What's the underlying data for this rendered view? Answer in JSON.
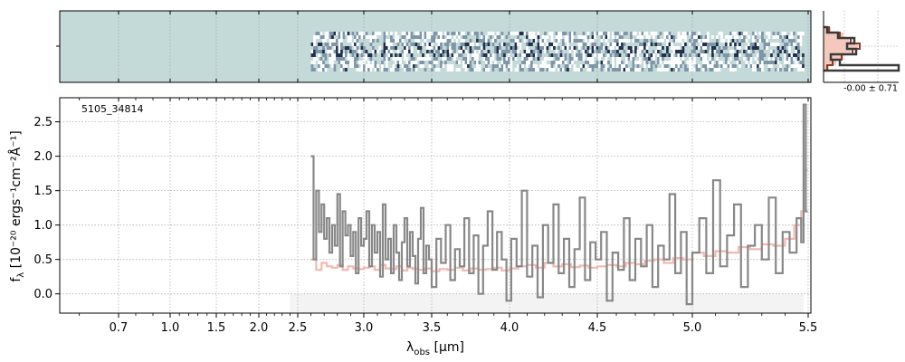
{
  "chart_data": [
    {
      "panel": "2d-spectrum",
      "type": "heatmap",
      "x_domain_um": [
        0.55,
        5.52
      ],
      "data_start_um": 2.6,
      "data_end_um": 5.48,
      "background_color": "#c4dad9",
      "colormap": [
        "#ffffff",
        "#c4dad9",
        "#7e95a8",
        "#1f2e4a"
      ]
    },
    {
      "panel": "pixel-histogram",
      "type": "histogram",
      "stat_text": "-0.00 ± 0.71",
      "colors": {
        "data": "#3a3a3a",
        "fill": "#f5c8bd",
        "model": "#8a3a28"
      }
    },
    {
      "panel": "1d-spectrum",
      "type": "line",
      "object_id": "5105_34814",
      "xlabel_main": "λ",
      "xlabel_sub": "obs",
      "xlabel_unit": " [μm]",
      "ylabel_main": "f",
      "ylabel_sub": "λ",
      "ylabel_unit": " [10⁻²⁰ ergs⁻¹cm⁻²Å⁻¹]",
      "x_scale": "sqrt-like (nonlinear wavelength axis)",
      "x_ticks": [
        "0.7",
        "1.0",
        "1.5",
        "2.0",
        "2.5",
        "3.0",
        "3.5",
        "4.0",
        "4.5",
        "5.0",
        "5.5"
      ],
      "x_tick_values": [
        0.7,
        1.0,
        1.5,
        2.0,
        2.5,
        3.0,
        3.5,
        4.0,
        4.5,
        5.0,
        5.5
      ],
      "y_ticks": [
        "0.0",
        "0.5",
        "1.0",
        "1.5",
        "2.0",
        "2.5"
      ],
      "y_tick_values": [
        0.0,
        0.5,
        1.0,
        1.5,
        2.0,
        2.5
      ],
      "xlim": [
        0.55,
        5.52
      ],
      "ylim": [
        -0.28,
        2.85
      ],
      "grid": true,
      "series": [
        {
          "role": "observed flux (step)",
          "color": "#888888",
          "x": [
            2.6,
            2.62,
            2.64,
            2.66,
            2.68,
            2.7,
            2.72,
            2.74,
            2.76,
            2.78,
            2.8,
            2.82,
            2.84,
            2.86,
            2.88,
            2.9,
            2.92,
            2.94,
            2.96,
            2.98,
            3.0,
            3.02,
            3.04,
            3.06,
            3.08,
            3.1,
            3.12,
            3.14,
            3.16,
            3.18,
            3.2,
            3.22,
            3.24,
            3.26,
            3.28,
            3.3,
            3.32,
            3.34,
            3.36,
            3.38,
            3.4,
            3.42,
            3.44,
            3.46,
            3.48,
            3.5,
            3.53,
            3.56,
            3.59,
            3.62,
            3.65,
            3.68,
            3.71,
            3.74,
            3.77,
            3.8,
            3.83,
            3.86,
            3.89,
            3.92,
            3.95,
            3.98,
            4.01,
            4.04,
            4.07,
            4.1,
            4.13,
            4.16,
            4.19,
            4.22,
            4.25,
            4.28,
            4.31,
            4.34,
            4.37,
            4.4,
            4.43,
            4.46,
            4.49,
            4.52,
            4.55,
            4.58,
            4.61,
            4.64,
            4.67,
            4.7,
            4.73,
            4.76,
            4.79,
            4.82,
            4.85,
            4.88,
            4.91,
            4.94,
            4.97,
            5.0,
            5.03,
            5.06,
            5.09,
            5.12,
            5.15,
            5.18,
            5.21,
            5.24,
            5.27,
            5.3,
            5.33,
            5.36,
            5.39,
            5.42,
            5.45,
            5.47,
            5.48,
            5.49
          ],
          "y": [
            2.0,
            0.5,
            1.5,
            0.9,
            1.3,
            0.8,
            1.1,
            0.6,
            1.0,
            0.7,
            1.45,
            0.4,
            1.2,
            0.85,
            1.0,
            0.55,
            0.9,
            0.3,
            1.1,
            0.7,
            0.8,
            1.2,
            0.4,
            1.0,
            0.6,
            0.9,
            0.25,
            1.3,
            0.5,
            0.8,
            0.3,
            1.0,
            0.6,
            0.2,
            0.75,
            1.1,
            0.4,
            0.9,
            0.55,
            0.15,
            0.8,
            1.25,
            0.3,
            0.7,
            0.5,
            0.1,
            0.8,
            0.45,
            1.0,
            0.2,
            0.65,
            0.4,
            1.1,
            0.3,
            0.85,
            0.0,
            0.7,
            1.2,
            0.35,
            0.9,
            0.5,
            -0.1,
            0.8,
            0.4,
            1.5,
            0.25,
            0.7,
            -0.05,
            1.0,
            0.45,
            1.3,
            0.3,
            0.8,
            0.1,
            0.65,
            1.4,
            0.2,
            0.75,
            0.5,
            0.9,
            -0.1,
            0.6,
            0.35,
            1.1,
            0.2,
            0.8,
            0.4,
            1.0,
            0.1,
            0.7,
            0.5,
            1.45,
            0.3,
            0.9,
            -0.15,
            0.6,
            1.1,
            0.3,
            1.65,
            0.4,
            0.85,
            1.3,
            0.1,
            0.7,
            1.0,
            0.5,
            1.4,
            0.3,
            0.9,
            0.6,
            1.1,
            0.75,
            2.75,
            1.2
          ]
        },
        {
          "role": "model / uncertainty (step)",
          "color": "#f2b8b3",
          "x": [
            2.6,
            2.64,
            2.68,
            2.72,
            2.76,
            2.8,
            2.84,
            2.88,
            2.92,
            2.96,
            3.0,
            3.04,
            3.08,
            3.12,
            3.16,
            3.2,
            3.24,
            3.28,
            3.32,
            3.36,
            3.4,
            3.45,
            3.5,
            3.55,
            3.6,
            3.65,
            3.7,
            3.75,
            3.8,
            3.85,
            3.9,
            3.95,
            4.0,
            4.05,
            4.1,
            4.15,
            4.2,
            4.25,
            4.3,
            4.35,
            4.4,
            4.45,
            4.5,
            4.55,
            4.6,
            4.65,
            4.7,
            4.75,
            4.8,
            4.85,
            4.9,
            4.95,
            5.0,
            5.05,
            5.1,
            5.15,
            5.2,
            5.25,
            5.3,
            5.35,
            5.4,
            5.44,
            5.47,
            5.49
          ],
          "y": [
            0.5,
            0.35,
            0.45,
            0.4,
            0.38,
            0.42,
            0.35,
            0.4,
            0.37,
            0.36,
            0.38,
            0.4,
            0.35,
            0.42,
            0.37,
            0.36,
            0.4,
            0.34,
            0.38,
            0.36,
            0.35,
            0.37,
            0.33,
            0.36,
            0.35,
            0.38,
            0.34,
            0.37,
            0.35,
            0.36,
            0.38,
            0.34,
            0.37,
            0.4,
            0.42,
            0.38,
            0.45,
            0.4,
            0.43,
            0.39,
            0.41,
            0.38,
            0.4,
            0.42,
            0.4,
            0.45,
            0.43,
            0.48,
            0.5,
            0.45,
            0.52,
            0.5,
            0.6,
            0.55,
            0.62,
            0.6,
            0.68,
            0.65,
            0.72,
            0.7,
            0.8,
            1.0,
            1.2,
            1.8
          ]
        }
      ]
    }
  ]
}
